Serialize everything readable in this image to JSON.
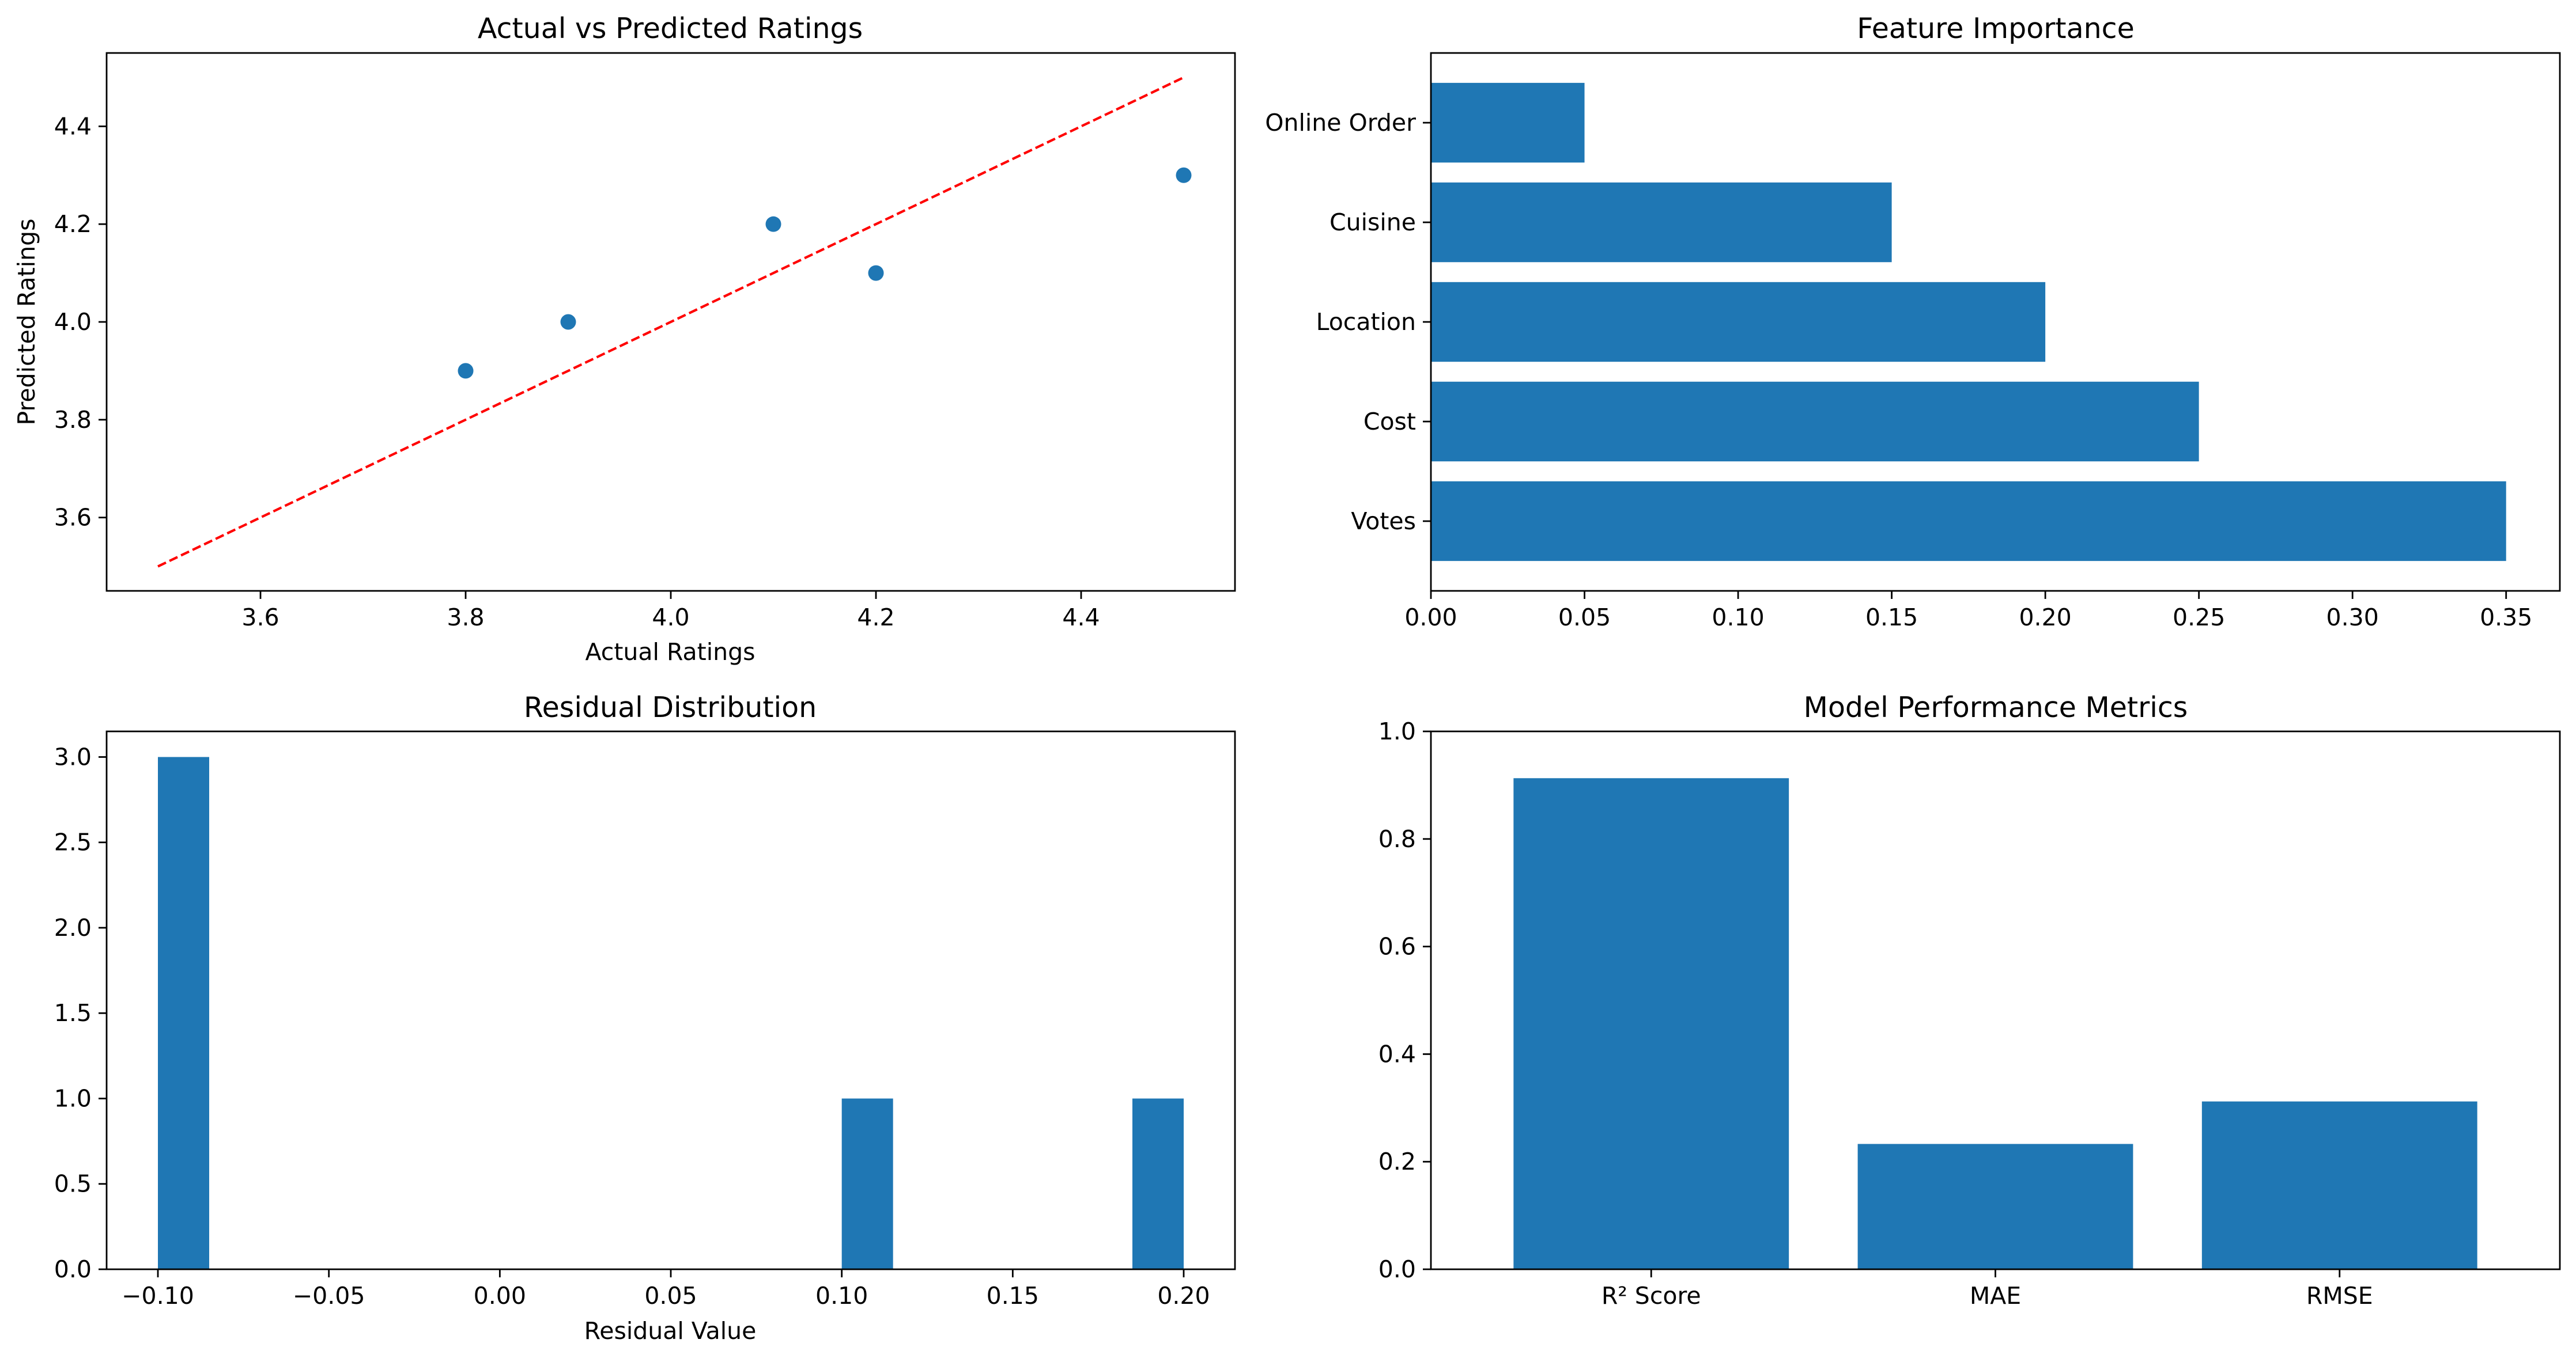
{
  "chart_data": [
    {
      "id": "scatter",
      "type": "scatter",
      "title": "Actual vs Predicted Ratings",
      "xlabel": "Actual Ratings",
      "ylabel": "Predicted Ratings",
      "xlim": [
        3.45,
        4.55
      ],
      "ylim": [
        3.45,
        4.55
      ],
      "xticks": [
        3.6,
        3.8,
        4.0,
        4.2,
        4.4
      ],
      "xtick_labels": [
        "3.6",
        "3.8",
        "4.0",
        "4.2",
        "4.4"
      ],
      "yticks": [
        3.6,
        3.8,
        4.0,
        4.2,
        4.4
      ],
      "ytick_labels": [
        "3.6",
        "3.8",
        "4.0",
        "4.2",
        "4.4"
      ],
      "points": [
        {
          "x": 3.8,
          "y": 3.9
        },
        {
          "x": 3.9,
          "y": 4.0
        },
        {
          "x": 4.1,
          "y": 4.2
        },
        {
          "x": 4.2,
          "y": 4.1
        },
        {
          "x": 4.5,
          "y": 4.3
        }
      ],
      "reference_line": {
        "x": [
          3.5,
          4.5
        ],
        "y": [
          3.5,
          4.5
        ],
        "color": "#ff0000",
        "style": "dashed"
      },
      "color": "#1f77b4",
      "grid": false
    },
    {
      "id": "importance",
      "type": "bar",
      "orientation": "horizontal",
      "title": "Feature Importance",
      "xlabel": "",
      "ylabel": "",
      "categories": [
        "Votes",
        "Cost",
        "Location",
        "Cuisine",
        "Online Order"
      ],
      "values": [
        0.35,
        0.25,
        0.2,
        0.15,
        0.05
      ],
      "xlim": [
        0,
        0.3675
      ],
      "xticks": [
        0,
        0.05,
        0.1,
        0.15,
        0.2,
        0.25,
        0.3,
        0.35
      ],
      "xtick_labels": [
        "0.00",
        "0.05",
        "0.10",
        "0.15",
        "0.20",
        "0.25",
        "0.30",
        "0.35"
      ],
      "color": "#1f77b4",
      "grid": false
    },
    {
      "id": "residuals",
      "type": "bar",
      "title": "Residual Distribution",
      "xlabel": "Residual Value",
      "ylabel": "",
      "bins": [
        {
          "x0": -0.1,
          "x1": -0.085,
          "count": 3
        },
        {
          "x0": 0.1,
          "x1": 0.115,
          "count": 1
        },
        {
          "x0": 0.185,
          "x1": 0.2,
          "count": 1
        }
      ],
      "xlim": [
        -0.115,
        0.215
      ],
      "ylim": [
        0,
        3.15
      ],
      "xticks": [
        -0.1,
        -0.05,
        0,
        0.05,
        0.1,
        0.15,
        0.2
      ],
      "xtick_labels": [
        "−0.10",
        "−0.05",
        "0.00",
        "0.05",
        "0.10",
        "0.15",
        "0.20"
      ],
      "yticks": [
        0,
        0.5,
        1,
        1.5,
        2,
        2.5,
        3
      ],
      "ytick_labels": [
        "0.0",
        "0.5",
        "1.0",
        "1.5",
        "2.0",
        "2.5",
        "3.0"
      ],
      "color": "#1f77b4",
      "grid": false
    },
    {
      "id": "metrics",
      "type": "bar",
      "title": "Model Performance Metrics",
      "xlabel": "",
      "ylabel": "",
      "categories": [
        "R² Score",
        "MAE",
        "RMSE"
      ],
      "values": [
        0.913,
        0.233,
        0.312
      ],
      "ylim": [
        0,
        1.0
      ],
      "yticks": [
        0,
        0.2,
        0.4,
        0.6,
        0.8,
        1.0
      ],
      "ytick_labels": [
        "0.0",
        "0.2",
        "0.4",
        "0.6",
        "0.8",
        "1.0"
      ],
      "color": "#1f77b4",
      "grid": false
    }
  ]
}
